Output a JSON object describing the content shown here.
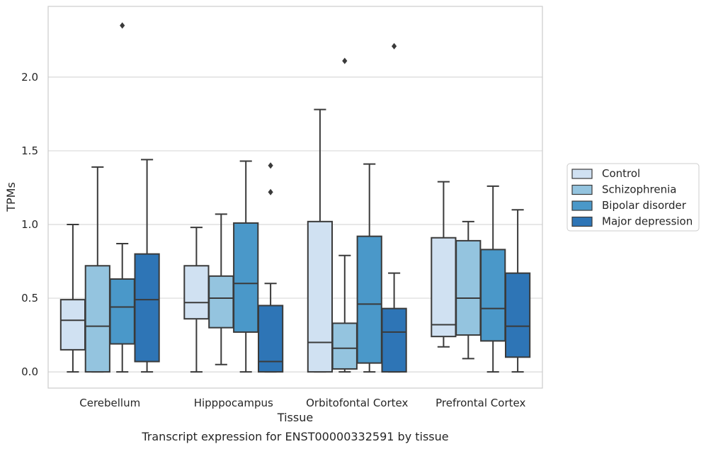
{
  "chart_data": {
    "type": "boxplot",
    "xlabel": "Tissue",
    "ylabel": "TPMs",
    "caption": "Transcript expression for ENST00000332591 by tissue",
    "ylim": [
      -0.11,
      2.48
    ],
    "yticks": [
      0.0,
      0.5,
      1.0,
      1.5,
      2.0
    ],
    "ytick_labels": [
      "0.0",
      "0.5",
      "1.0",
      "1.5",
      "2.0"
    ],
    "grid": "horizontal",
    "legend_position": "right",
    "categories": [
      "Cerebellum",
      "Hipppocampus",
      "Orbitofontal Cortex",
      "Prefrontal Cortex"
    ],
    "series": [
      {
        "name": "Control",
        "color": "#d0e1f2",
        "boxes": [
          {
            "whisker_low": 0.0,
            "q1": 0.15,
            "median": 0.35,
            "q3": 0.49,
            "whisker_high": 1.0,
            "outliers": []
          },
          {
            "whisker_low": 0.0,
            "q1": 0.36,
            "median": 0.47,
            "q3": 0.72,
            "whisker_high": 0.98,
            "outliers": []
          },
          {
            "whisker_low": 0.0,
            "q1": 0.0,
            "median": 0.2,
            "q3": 1.02,
            "whisker_high": 1.78,
            "outliers": []
          },
          {
            "whisker_low": 0.17,
            "q1": 0.24,
            "median": 0.32,
            "q3": 0.91,
            "whisker_high": 1.29,
            "outliers": []
          }
        ]
      },
      {
        "name": "Schizophrenia",
        "color": "#94c4df",
        "boxes": [
          {
            "whisker_low": 0.0,
            "q1": 0.0,
            "median": 0.31,
            "q3": 0.72,
            "whisker_high": 1.39,
            "outliers": []
          },
          {
            "whisker_low": 0.05,
            "q1": 0.3,
            "median": 0.5,
            "q3": 0.65,
            "whisker_high": 1.07,
            "outliers": []
          },
          {
            "whisker_low": 0.0,
            "q1": 0.02,
            "median": 0.16,
            "q3": 0.33,
            "whisker_high": 0.79,
            "outliers": [
              2.11
            ]
          },
          {
            "whisker_low": 0.09,
            "q1": 0.25,
            "median": 0.5,
            "q3": 0.89,
            "whisker_high": 1.02,
            "outliers": []
          }
        ]
      },
      {
        "name": "Bipolar disorder",
        "color": "#4a98c9",
        "boxes": [
          {
            "whisker_low": 0.0,
            "q1": 0.19,
            "median": 0.44,
            "q3": 0.63,
            "whisker_high": 0.87,
            "outliers": [
              2.35
            ]
          },
          {
            "whisker_low": 0.0,
            "q1": 0.27,
            "median": 0.6,
            "q3": 1.01,
            "whisker_high": 1.43,
            "outliers": []
          },
          {
            "whisker_low": 0.0,
            "q1": 0.06,
            "median": 0.46,
            "q3": 0.92,
            "whisker_high": 1.41,
            "outliers": []
          },
          {
            "whisker_low": 0.0,
            "q1": 0.21,
            "median": 0.43,
            "q3": 0.83,
            "whisker_high": 1.26,
            "outliers": []
          }
        ]
      },
      {
        "name": "Major depression",
        "color": "#2e75b6",
        "boxes": [
          {
            "whisker_low": 0.0,
            "q1": 0.07,
            "median": 0.49,
            "q3": 0.8,
            "whisker_high": 1.44,
            "outliers": []
          },
          {
            "whisker_low": 0.0,
            "q1": 0.0,
            "median": 0.07,
            "q3": 0.45,
            "whisker_high": 0.6,
            "outliers": [
              1.22,
              1.4
            ]
          },
          {
            "whisker_low": 0.0,
            "q1": 0.0,
            "median": 0.27,
            "q3": 0.43,
            "whisker_high": 0.67,
            "outliers": [
              2.21
            ]
          },
          {
            "whisker_low": 0.0,
            "q1": 0.1,
            "median": 0.31,
            "q3": 0.67,
            "whisker_high": 1.1,
            "outliers": []
          }
        ]
      }
    ]
  }
}
